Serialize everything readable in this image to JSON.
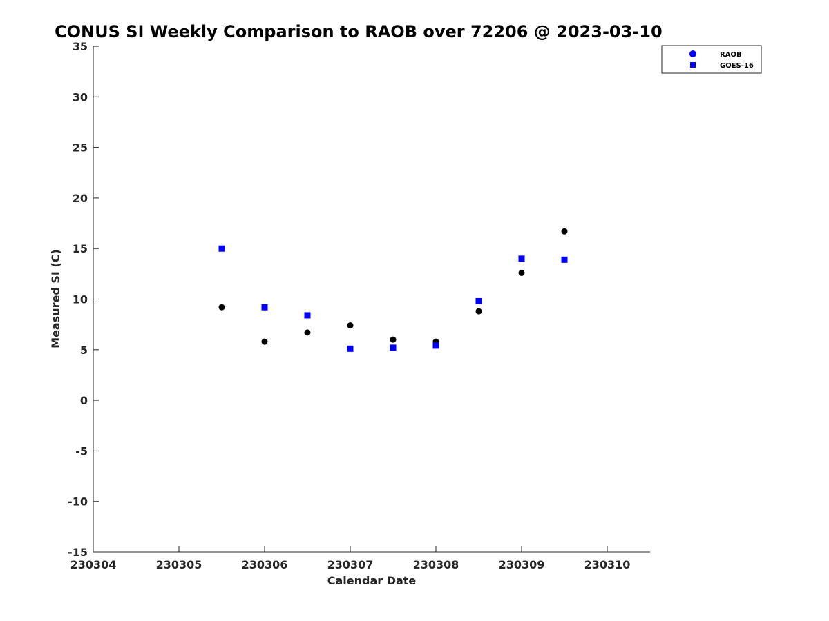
{
  "chart_data": {
    "type": "scatter",
    "title": "CONUS SI Weekly Comparison to RAOB over 72206 @ 2023-03-10",
    "xlabel": "Calendar Date",
    "ylabel": "Measured SI (C)",
    "x_ticks": [
      "230304",
      "230305",
      "230306",
      "230307",
      "230308",
      "230309",
      "230310"
    ],
    "y_ticks": [
      "35",
      "30",
      "25",
      "20",
      "15",
      "10",
      "5",
      "0",
      "-5",
      "-10",
      "-15"
    ],
    "xlim": [
      "230304",
      "230310.5"
    ],
    "ylim": [
      -15,
      35
    ],
    "grid": false,
    "legend_position": "top-right",
    "series": [
      {
        "name": "RAOB",
        "marker": "circle",
        "color": "#000000",
        "legend_color": "#0000ff",
        "x": [
          "230305.5",
          "230306",
          "230306.5",
          "230307",
          "230307.5",
          "230308",
          "230308.5",
          "230309",
          "230309.5"
        ],
        "y": [
          9.2,
          5.8,
          6.7,
          7.4,
          6.0,
          5.8,
          8.8,
          12.6,
          16.7
        ]
      },
      {
        "name": "GOES-16",
        "marker": "square",
        "color": "#0000ff",
        "legend_color": "#0000ff",
        "x": [
          "230305.5",
          "230306",
          "230306.5",
          "230307",
          "230307.5",
          "230308",
          "230308.5",
          "230309",
          "230309.5"
        ],
        "y": [
          15.0,
          9.2,
          8.4,
          5.1,
          5.2,
          5.4,
          9.8,
          14.0,
          13.9
        ]
      }
    ]
  }
}
